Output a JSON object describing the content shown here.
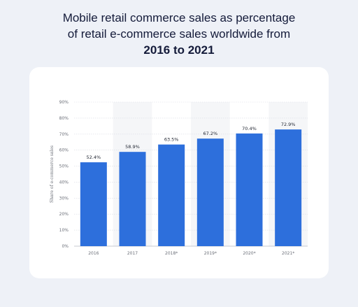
{
  "header": {
    "line1": "Mobile retail commerce sales as percentage",
    "line2": "of retail e-commerce sales worldwide from",
    "line3": "2016 to 2021"
  },
  "chart_data": {
    "type": "bar",
    "categories": [
      "2016",
      "2017",
      "2018*",
      "2019*",
      "2020*",
      "2021*"
    ],
    "values": [
      52.4,
      58.9,
      63.5,
      67.2,
      70.4,
      72.9
    ],
    "value_labels": [
      "52.4%",
      "58.9%",
      "63.5%",
      "67.2%",
      "70.4%",
      "72.9%"
    ],
    "yticks": [
      "0%",
      "10%",
      "20%",
      "30%",
      "40%",
      "50%",
      "60%",
      "70%",
      "80%",
      "90%"
    ],
    "ylim": [
      0,
      90
    ],
    "ylabel": "Share of e-commerce sales",
    "xlabel": "",
    "bar_color": "#2d6fdc",
    "grid": true,
    "alt_column_shading": true
  }
}
